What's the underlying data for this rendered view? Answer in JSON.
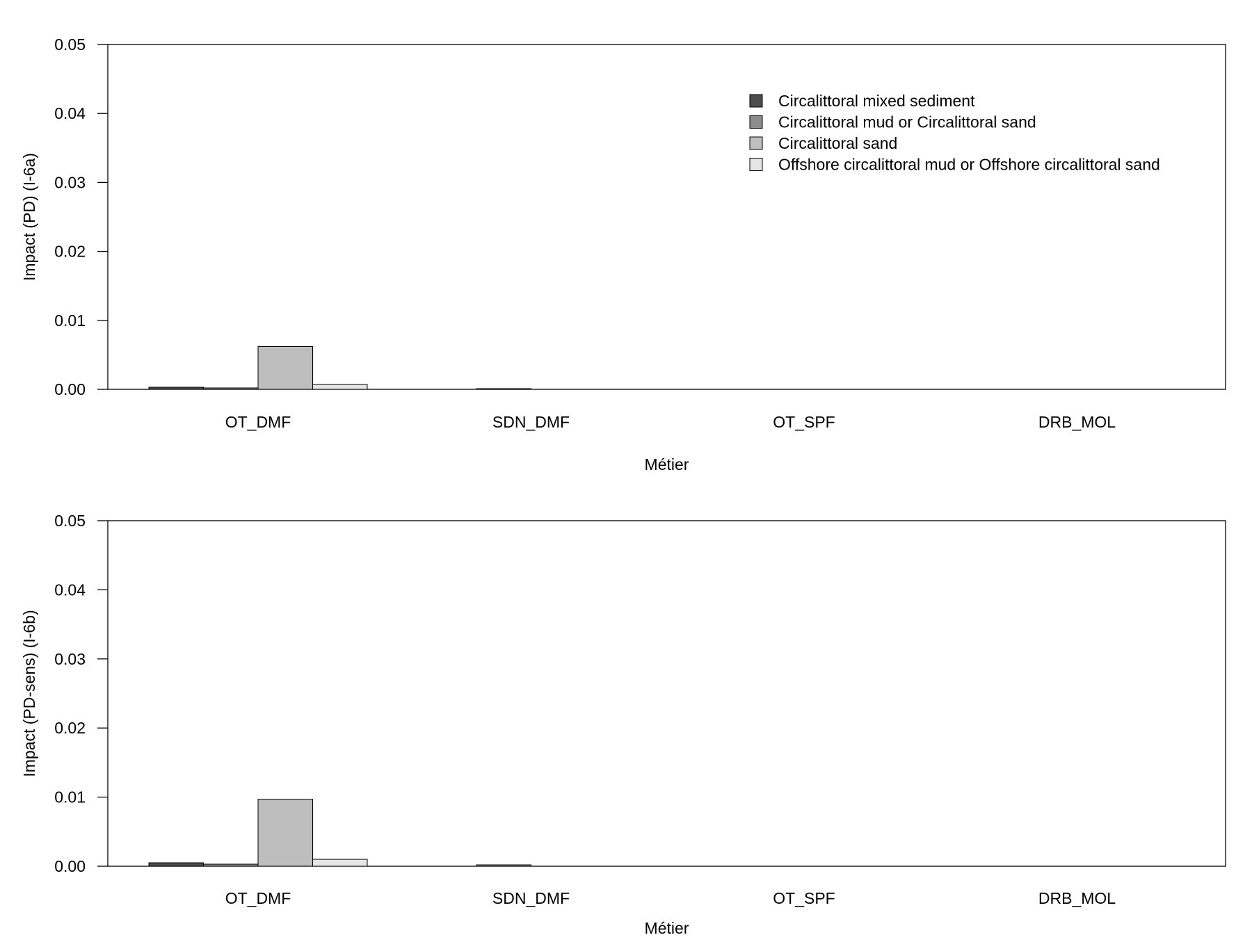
{
  "chart_data": [
    {
      "type": "bar",
      "title": "",
      "xlabel": "Métier",
      "ylabel": "Impact (PD) (I-6a)",
      "ylim": [
        0,
        0.05
      ],
      "yticks": [
        "0.00",
        "0.01",
        "0.02",
        "0.03",
        "0.04",
        "0.05"
      ],
      "categories": [
        "OT_DMF",
        "SDN_DMF",
        "OT_SPF",
        "DRB_MOL"
      ],
      "series": [
        {
          "name": "Circalittoral mixed sediment",
          "color": "#4d4d4d",
          "values": [
            0.0003,
            0.0,
            0.0,
            0.0
          ]
        },
        {
          "name": "Circalittoral mud or Circalittoral sand",
          "color": "#8c8c8c",
          "values": [
            0.0002,
            0.0001,
            0.0,
            0.0
          ]
        },
        {
          "name": "Circalittoral sand",
          "color": "#bebebe",
          "values": [
            0.0062,
            0.0,
            0.0,
            0.0
          ]
        },
        {
          "name": "Offshore circalittoral mud or Offshore circalittoral sand",
          "color": "#e6e6e6",
          "values": [
            0.0007,
            0.0,
            0.0,
            0.0
          ]
        }
      ],
      "legend": "top-right",
      "grid": false
    },
    {
      "type": "bar",
      "title": "",
      "xlabel": "Métier",
      "ylabel": "Impact (PD-sens) (I-6b)",
      "ylim": [
        0,
        0.05
      ],
      "yticks": [
        "0.00",
        "0.01",
        "0.02",
        "0.03",
        "0.04",
        "0.05"
      ],
      "categories": [
        "OT_DMF",
        "SDN_DMF",
        "OT_SPF",
        "DRB_MOL"
      ],
      "series": [
        {
          "name": "Circalittoral mixed sediment",
          "color": "#4d4d4d",
          "values": [
            0.0005,
            0.0,
            0.0,
            0.0
          ]
        },
        {
          "name": "Circalittoral mud or Circalittoral sand",
          "color": "#8c8c8c",
          "values": [
            0.0003,
            0.0002,
            0.0,
            0.0
          ]
        },
        {
          "name": "Circalittoral sand",
          "color": "#bebebe",
          "values": [
            0.0097,
            0.0,
            0.0,
            0.0
          ]
        },
        {
          "name": "Offshore circalittoral mud or Offshore circalittoral sand",
          "color": "#e6e6e6",
          "values": [
            0.001,
            0.0,
            0.0,
            0.0
          ]
        }
      ],
      "legend": "none",
      "grid": false
    }
  ]
}
